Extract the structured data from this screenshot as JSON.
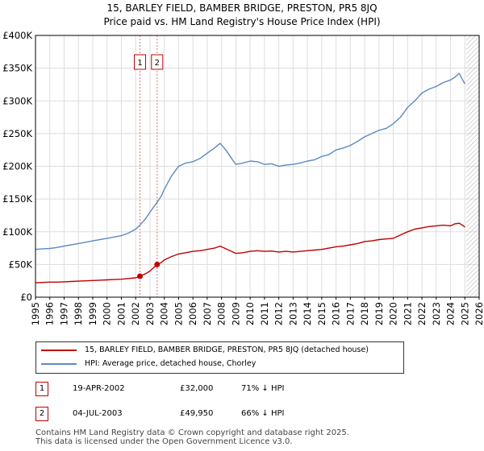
{
  "title_line1": "15, BARLEY FIELD, BAMBER BRIDGE, PRESTON, PR5 8JQ",
  "title_line2": "Price paid vs. HM Land Registry's House Price Index (HPI)",
  "legend": {
    "property_label": "15, BARLEY FIELD, BAMBER BRIDGE, PRESTON, PR5 8JQ (detached house)",
    "hpi_label": "HPI: Average price, detached house, Chorley"
  },
  "sales": [
    {
      "num": "1",
      "date": "19-APR-2002",
      "price": "£32,000",
      "hpi_diff": "71% ↓ HPI"
    },
    {
      "num": "2",
      "date": "04-JUL-2003",
      "price": "£49,950",
      "hpi_diff": "66% ↓ HPI"
    }
  ],
  "footer": {
    "line1": "Contains HM Land Registry data © Crown copyright and database right 2025.",
    "line2": "This data is licensed under the Open Government Licence v3.0."
  },
  "colors": {
    "property": "#c00000",
    "hpi": "#5b8ac2",
    "grid": "#dddddd",
    "marker_line": "#e07070",
    "hatch": "#999999"
  },
  "chart_data": {
    "type": "line",
    "title": "15, BARLEY FIELD, BAMBER BRIDGE, PRESTON, PR5 8JQ",
    "xlabel": "",
    "ylabel": "",
    "xlim": [
      1995,
      2026
    ],
    "ylim": [
      0,
      400000
    ],
    "y_ticks": [
      {
        "value": 0,
        "label": "£0"
      },
      {
        "value": 50000,
        "label": "£50K"
      },
      {
        "value": 100000,
        "label": "£100K"
      },
      {
        "value": 150000,
        "label": "£150K"
      },
      {
        "value": 200000,
        "label": "£200K"
      },
      {
        "value": 250000,
        "label": "£250K"
      },
      {
        "value": 300000,
        "label": "£300K"
      },
      {
        "value": 350000,
        "label": "£350K"
      },
      {
        "value": 400000,
        "label": "£400K"
      }
    ],
    "x_ticks": [
      "1995",
      "1996",
      "1997",
      "1998",
      "1999",
      "2000",
      "2001",
      "2002",
      "2003",
      "2004",
      "2005",
      "2006",
      "2007",
      "2008",
      "2009",
      "2010",
      "2011",
      "2012",
      "2013",
      "2014",
      "2015",
      "2016",
      "2017",
      "2018",
      "2019",
      "2020",
      "2021",
      "2022",
      "2023",
      "2024",
      "2025",
      "2026"
    ],
    "forecast_start": 2025.1,
    "sale_markers": [
      {
        "label": "1",
        "x": 2002.3,
        "y": 32000
      },
      {
        "label": "2",
        "x": 2003.5,
        "y": 49950
      }
    ],
    "series": [
      {
        "name": "15, BARLEY FIELD, BAMBER BRIDGE, PRESTON, PR5 8JQ (detached house)",
        "x": [
          1995,
          1995.5,
          1996,
          1996.5,
          1997,
          1997.5,
          1998,
          1998.5,
          1999,
          1999.5,
          2000,
          2000.5,
          2001,
          2001.5,
          2002,
          2002.3,
          2002.7,
          2003,
          2003.5,
          2003.8,
          2004,
          2004.5,
          2005,
          2005.5,
          2006,
          2006.5,
          2007,
          2007.5,
          2007.9,
          2008.3,
          2008.7,
          2009,
          2009.5,
          2010,
          2010.5,
          2011,
          2011.5,
          2012,
          2012.5,
          2013,
          2013.5,
          2014,
          2014.5,
          2015,
          2015.5,
          2016,
          2016.5,
          2017,
          2017.5,
          2018,
          2018.5,
          2019,
          2019.5,
          2020,
          2020.5,
          2021,
          2021.5,
          2022,
          2022.5,
          2023,
          2023.5,
          2024,
          2024.3,
          2024.6,
          2024.9,
          2025.0
        ],
        "values": [
          22000,
          22500,
          23000,
          23000,
          23500,
          24000,
          24500,
          25000,
          25500,
          26000,
          26500,
          27000,
          27500,
          28500,
          29500,
          32000,
          36000,
          40000,
          49950,
          53000,
          57000,
          62000,
          66000,
          68000,
          70000,
          71000,
          73000,
          75000,
          78000,
          74000,
          70000,
          67000,
          68000,
          70000,
          71000,
          70000,
          70500,
          69000,
          70000,
          69000,
          70000,
          71000,
          72000,
          73000,
          75000,
          77000,
          78000,
          80000,
          82000,
          85000,
          86000,
          88000,
          89000,
          90000,
          95000,
          100000,
          104000,
          106000,
          108000,
          109000,
          110000,
          109000,
          112000,
          113000,
          109000,
          107000
        ]
      },
      {
        "name": "HPI: Average price, detached house, Chorley",
        "x": [
          1995,
          1995.5,
          1996,
          1996.5,
          1997,
          1997.5,
          1998,
          1998.5,
          1999,
          1999.5,
          2000,
          2000.5,
          2001,
          2001.5,
          2002,
          2002.3,
          2002.7,
          2003,
          2003.5,
          2003.8,
          2004,
          2004.5,
          2005,
          2005.5,
          2006,
          2006.5,
          2007,
          2007.5,
          2007.9,
          2008.3,
          2008.7,
          2009,
          2009.5,
          2010,
          2010.5,
          2011,
          2011.5,
          2012,
          2012.5,
          2013,
          2013.5,
          2014,
          2014.5,
          2015,
          2015.5,
          2016,
          2016.5,
          2017,
          2017.5,
          2018,
          2018.5,
          2019,
          2019.5,
          2020,
          2020.5,
          2021,
          2021.5,
          2022,
          2022.5,
          2023,
          2023.5,
          2024,
          2024.3,
          2024.6,
          2024.9,
          2025.0
        ],
        "values": [
          73000,
          74000,
          74500,
          76000,
          78000,
          80000,
          82000,
          84000,
          86000,
          88000,
          90000,
          92000,
          94000,
          98000,
          104000,
          110000,
          120000,
          130000,
          145000,
          155000,
          165000,
          185000,
          200000,
          205000,
          207000,
          212000,
          220000,
          228000,
          235000,
          225000,
          212000,
          203000,
          205000,
          208000,
          207000,
          203000,
          204000,
          200000,
          202000,
          203000,
          205000,
          208000,
          210000,
          215000,
          218000,
          225000,
          228000,
          232000,
          238000,
          245000,
          250000,
          255000,
          258000,
          265000,
          275000,
          290000,
          300000,
          312000,
          318000,
          322000,
          328000,
          332000,
          336000,
          342000,
          330000,
          326000
        ]
      }
    ]
  }
}
